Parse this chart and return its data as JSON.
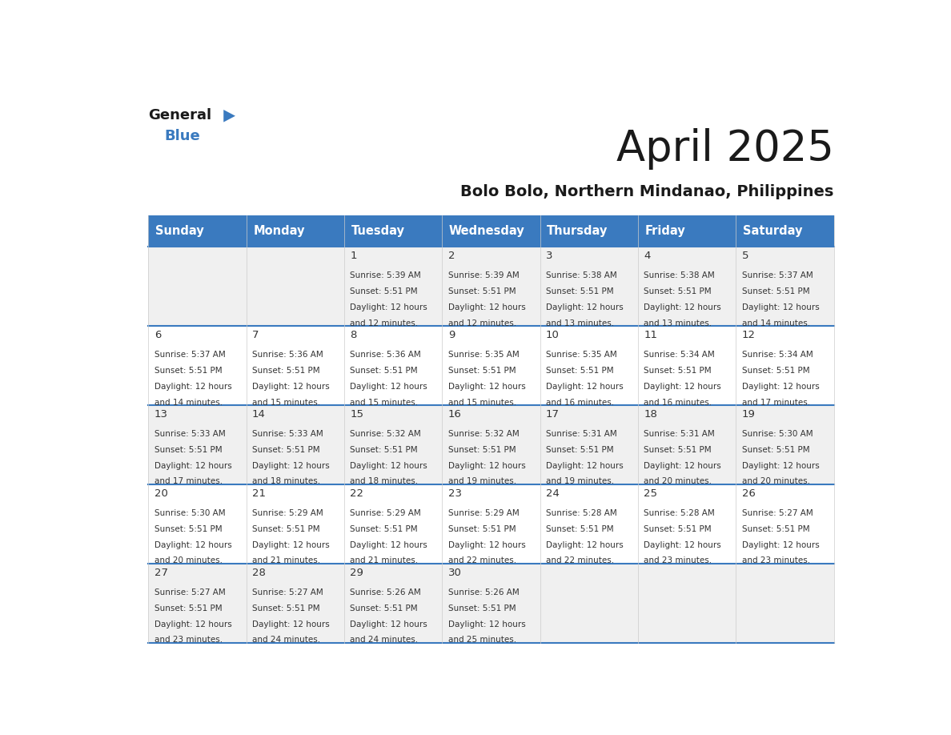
{
  "title": "April 2025",
  "subtitle": "Bolo Bolo, Northern Mindanao, Philippines",
  "days_of_week": [
    "Sunday",
    "Monday",
    "Tuesday",
    "Wednesday",
    "Thursday",
    "Friday",
    "Saturday"
  ],
  "header_bg": "#3a7abf",
  "header_text": "#ffffff",
  "row_bg_odd": "#f0f0f0",
  "row_bg_even": "#ffffff",
  "cell_text_color": "#333333",
  "separator_color": "#3a7abf",
  "calendar_data": [
    [
      null,
      null,
      {
        "day": 1,
        "sunrise": "5:39 AM",
        "sunset": "5:51 PM",
        "daylight": "12 hours and 12 minutes"
      },
      {
        "day": 2,
        "sunrise": "5:39 AM",
        "sunset": "5:51 PM",
        "daylight": "12 hours and 12 minutes"
      },
      {
        "day": 3,
        "sunrise": "5:38 AM",
        "sunset": "5:51 PM",
        "daylight": "12 hours and 13 minutes"
      },
      {
        "day": 4,
        "sunrise": "5:38 AM",
        "sunset": "5:51 PM",
        "daylight": "12 hours and 13 minutes"
      },
      {
        "day": 5,
        "sunrise": "5:37 AM",
        "sunset": "5:51 PM",
        "daylight": "12 hours and 14 minutes"
      }
    ],
    [
      {
        "day": 6,
        "sunrise": "5:37 AM",
        "sunset": "5:51 PM",
        "daylight": "12 hours and 14 minutes"
      },
      {
        "day": 7,
        "sunrise": "5:36 AM",
        "sunset": "5:51 PM",
        "daylight": "12 hours and 15 minutes"
      },
      {
        "day": 8,
        "sunrise": "5:36 AM",
        "sunset": "5:51 PM",
        "daylight": "12 hours and 15 minutes"
      },
      {
        "day": 9,
        "sunrise": "5:35 AM",
        "sunset": "5:51 PM",
        "daylight": "12 hours and 15 minutes"
      },
      {
        "day": 10,
        "sunrise": "5:35 AM",
        "sunset": "5:51 PM",
        "daylight": "12 hours and 16 minutes"
      },
      {
        "day": 11,
        "sunrise": "5:34 AM",
        "sunset": "5:51 PM",
        "daylight": "12 hours and 16 minutes"
      },
      {
        "day": 12,
        "sunrise": "5:34 AM",
        "sunset": "5:51 PM",
        "daylight": "12 hours and 17 minutes"
      }
    ],
    [
      {
        "day": 13,
        "sunrise": "5:33 AM",
        "sunset": "5:51 PM",
        "daylight": "12 hours and 17 minutes"
      },
      {
        "day": 14,
        "sunrise": "5:33 AM",
        "sunset": "5:51 PM",
        "daylight": "12 hours and 18 minutes"
      },
      {
        "day": 15,
        "sunrise": "5:32 AM",
        "sunset": "5:51 PM",
        "daylight": "12 hours and 18 minutes"
      },
      {
        "day": 16,
        "sunrise": "5:32 AM",
        "sunset": "5:51 PM",
        "daylight": "12 hours and 19 minutes"
      },
      {
        "day": 17,
        "sunrise": "5:31 AM",
        "sunset": "5:51 PM",
        "daylight": "12 hours and 19 minutes"
      },
      {
        "day": 18,
        "sunrise": "5:31 AM",
        "sunset": "5:51 PM",
        "daylight": "12 hours and 20 minutes"
      },
      {
        "day": 19,
        "sunrise": "5:30 AM",
        "sunset": "5:51 PM",
        "daylight": "12 hours and 20 minutes"
      }
    ],
    [
      {
        "day": 20,
        "sunrise": "5:30 AM",
        "sunset": "5:51 PM",
        "daylight": "12 hours and 20 minutes"
      },
      {
        "day": 21,
        "sunrise": "5:29 AM",
        "sunset": "5:51 PM",
        "daylight": "12 hours and 21 minutes"
      },
      {
        "day": 22,
        "sunrise": "5:29 AM",
        "sunset": "5:51 PM",
        "daylight": "12 hours and 21 minutes"
      },
      {
        "day": 23,
        "sunrise": "5:29 AM",
        "sunset": "5:51 PM",
        "daylight": "12 hours and 22 minutes"
      },
      {
        "day": 24,
        "sunrise": "5:28 AM",
        "sunset": "5:51 PM",
        "daylight": "12 hours and 22 minutes"
      },
      {
        "day": 25,
        "sunrise": "5:28 AM",
        "sunset": "5:51 PM",
        "daylight": "12 hours and 23 minutes"
      },
      {
        "day": 26,
        "sunrise": "5:27 AM",
        "sunset": "5:51 PM",
        "daylight": "12 hours and 23 minutes"
      }
    ],
    [
      {
        "day": 27,
        "sunrise": "5:27 AM",
        "sunset": "5:51 PM",
        "daylight": "12 hours and 23 minutes"
      },
      {
        "day": 28,
        "sunrise": "5:27 AM",
        "sunset": "5:51 PM",
        "daylight": "12 hours and 24 minutes"
      },
      {
        "day": 29,
        "sunrise": "5:26 AM",
        "sunset": "5:51 PM",
        "daylight": "12 hours and 24 minutes"
      },
      {
        "day": 30,
        "sunrise": "5:26 AM",
        "sunset": "5:51 PM",
        "daylight": "12 hours and 25 minutes"
      },
      null,
      null,
      null
    ]
  ]
}
